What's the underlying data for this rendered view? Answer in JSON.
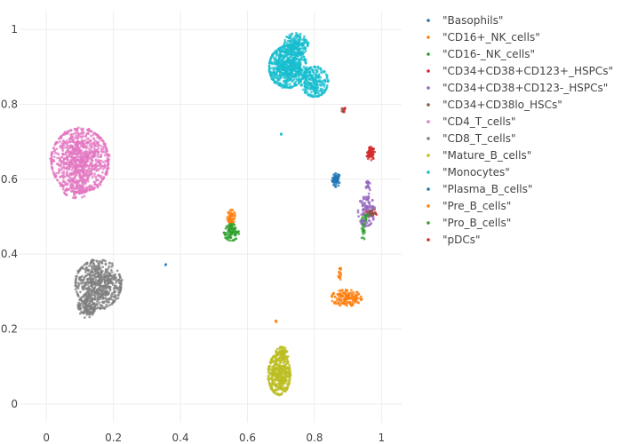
{
  "chart_data": {
    "type": "scatter",
    "title": "",
    "xlabel": "",
    "ylabel": "",
    "xlim": [
      -0.08,
      1.06
    ],
    "ylim": [
      -0.05,
      1.05
    ],
    "grid": true,
    "legend_placement": "right",
    "x_ticks": [
      {
        "value": 0,
        "label": "0"
      },
      {
        "value": 0.2,
        "label": "0.2"
      },
      {
        "value": 0.4,
        "label": "0.4"
      },
      {
        "value": 0.6,
        "label": "0.6"
      },
      {
        "value": 0.8,
        "label": "0.8"
      },
      {
        "value": 1,
        "label": "1"
      }
    ],
    "y_ticks": [
      {
        "value": 0,
        "label": "0"
      },
      {
        "value": 0.2,
        "label": "0.2"
      },
      {
        "value": 0.4,
        "label": "0.4"
      },
      {
        "value": 0.6,
        "label": "0.6"
      },
      {
        "value": 0.8,
        "label": "0.8"
      },
      {
        "value": 1,
        "label": "1"
      }
    ],
    "series": [
      {
        "name": "\"Basophils\"",
        "color": "#1f77b4",
        "clusters": [
          {
            "cx": 0.865,
            "cy": 0.598,
            "rx": 0.012,
            "ry": 0.018,
            "n": 45
          },
          {
            "cx": 0.357,
            "cy": 0.372,
            "rx": 0.002,
            "ry": 0.002,
            "n": 2
          }
        ]
      },
      {
        "name": "\"CD16+_NK_cells\"",
        "color": "#ff7f0e",
        "clusters": [
          {
            "cx": 0.895,
            "cy": 0.283,
            "rx": 0.045,
            "ry": 0.022,
            "n": 160
          },
          {
            "cx": 0.875,
            "cy": 0.35,
            "rx": 0.004,
            "ry": 0.025,
            "n": 18
          },
          {
            "cx": 0.552,
            "cy": 0.497,
            "rx": 0.012,
            "ry": 0.022,
            "n": 60
          }
        ]
      },
      {
        "name": "\"CD16-_NK_cells\"",
        "color": "#2ca02c",
        "clusters": [
          {
            "cx": 0.552,
            "cy": 0.458,
            "rx": 0.022,
            "ry": 0.022,
            "n": 90
          },
          {
            "cx": 0.945,
            "cy": 0.468,
            "rx": 0.008,
            "ry": 0.03,
            "n": 30
          }
        ]
      },
      {
        "name": "\"CD34+CD38+CD123+_HSPCs\"",
        "color": "#d62728",
        "clusters": [
          {
            "cx": 0.968,
            "cy": 0.668,
            "rx": 0.012,
            "ry": 0.018,
            "n": 50
          },
          {
            "cx": 0.97,
            "cy": 0.51,
            "rx": 0.018,
            "ry": 0.01,
            "n": 25
          }
        ]
      },
      {
        "name": "\"CD34+CD38+CD123-_HSPCs\"",
        "color": "#9467bd",
        "clusters": [
          {
            "cx": 0.955,
            "cy": 0.515,
            "rx": 0.025,
            "ry": 0.04,
            "n": 110
          },
          {
            "cx": 0.96,
            "cy": 0.58,
            "rx": 0.006,
            "ry": 0.02,
            "n": 20
          }
        ]
      },
      {
        "name": "\"CD34+CD38lo_HSCs\"",
        "color": "#8c564b",
        "clusters": [
          {
            "cx": 0.97,
            "cy": 0.51,
            "rx": 0.01,
            "ry": 0.01,
            "n": 25
          },
          {
            "cx": 0.885,
            "cy": 0.785,
            "rx": 0.004,
            "ry": 0.006,
            "n": 6
          }
        ]
      },
      {
        "name": "\"CD4_T_cells\"",
        "color": "#e377c2",
        "clusters": [
          {
            "cx": 0.1,
            "cy": 0.65,
            "rx": 0.085,
            "ry": 0.085,
            "n": 950
          },
          {
            "cx": 0.09,
            "cy": 0.575,
            "rx": 0.04,
            "ry": 0.025,
            "n": 80
          }
        ]
      },
      {
        "name": "\"CD8_T_cells\"",
        "color": "#7f7f7f",
        "clusters": [
          {
            "cx": 0.155,
            "cy": 0.32,
            "rx": 0.068,
            "ry": 0.065,
            "n": 600
          },
          {
            "cx": 0.12,
            "cy": 0.26,
            "rx": 0.025,
            "ry": 0.03,
            "n": 120
          }
        ]
      },
      {
        "name": "\"Mature_B_cells\"",
        "color": "#bcbd22",
        "clusters": [
          {
            "cx": 0.695,
            "cy": 0.08,
            "rx": 0.033,
            "ry": 0.055,
            "n": 420
          },
          {
            "cx": 0.703,
            "cy": 0.132,
            "rx": 0.02,
            "ry": 0.02,
            "n": 80
          }
        ]
      },
      {
        "name": "\"Monocytes\"",
        "color": "#17becf",
        "clusters": [
          {
            "cx": 0.72,
            "cy": 0.9,
            "rx": 0.055,
            "ry": 0.055,
            "n": 700
          },
          {
            "cx": 0.8,
            "cy": 0.86,
            "rx": 0.04,
            "ry": 0.04,
            "n": 250
          },
          {
            "cx": 0.745,
            "cy": 0.96,
            "rx": 0.035,
            "ry": 0.03,
            "n": 180
          },
          {
            "cx": 0.7,
            "cy": 0.72,
            "rx": 0.002,
            "ry": 0.002,
            "n": 3
          }
        ]
      },
      {
        "name": "\"Plasma_B_cells\"",
        "color": "#1f77b4",
        "clusters": [
          {
            "cx": 0.865,
            "cy": 0.6,
            "rx": 0.006,
            "ry": 0.01,
            "n": 12
          }
        ]
      },
      {
        "name": "\"Pre_B_cells\"",
        "color": "#ff7f0e",
        "clusters": [
          {
            "cx": 0.685,
            "cy": 0.22,
            "rx": 0.002,
            "ry": 0.004,
            "n": 4
          }
        ]
      },
      {
        "name": "\"Pro_B_cells\"",
        "color": "#2ca02c",
        "clusters": [
          {
            "cx": 0.955,
            "cy": 0.5,
            "rx": 0.006,
            "ry": 0.01,
            "n": 10
          }
        ]
      },
      {
        "name": "\"pDCs\"",
        "color": "#d62728",
        "clusters": [
          {
            "cx": 0.89,
            "cy": 0.785,
            "rx": 0.004,
            "ry": 0.006,
            "n": 6
          }
        ]
      }
    ]
  }
}
